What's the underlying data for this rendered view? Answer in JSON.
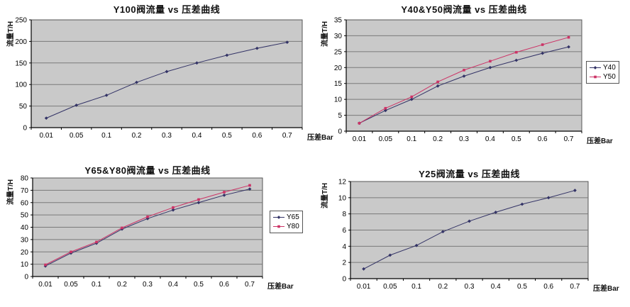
{
  "page": {
    "background": "#ffffff",
    "plot_background": "#c9c9c9",
    "gridline_color": "#7a7a7a",
    "axis_color": "#000000",
    "navy_series_color": "#333366",
    "pink_series_color": "#cc3366"
  },
  "chart_data": [
    {
      "type": "line",
      "title": "Y100阀流量 vs 压差曲线",
      "xlabel": "压差Bar",
      "ylabel": "流量T/H",
      "categories": [
        "0.01",
        "0.05",
        "0.1",
        "0.2",
        "0.3",
        "0.4",
        "0.5",
        "0.6",
        "0.7"
      ],
      "ylim": [
        0,
        250
      ],
      "ytick_step": 50,
      "grid": "horizontal",
      "legend_position": "none",
      "series": [
        {
          "name": "Y100",
          "color": "#333366",
          "marker": "diamond",
          "values": [
            22,
            52,
            75,
            105,
            130,
            150,
            168,
            184,
            198
          ]
        }
      ]
    },
    {
      "type": "line",
      "title": "Y40&Y50阀流量 vs 压差曲线",
      "xlabel": "压差Bar",
      "ylabel": "流量T/H",
      "categories": [
        "0.01",
        "0.05",
        "0.1",
        "0.2",
        "0.3",
        "0.4",
        "0.5",
        "0.6",
        "0.7"
      ],
      "ylim": [
        0,
        35
      ],
      "ytick_step": 5,
      "grid": "horizontal",
      "legend_position": "right",
      "series": [
        {
          "name": "Y40",
          "color": "#333366",
          "marker": "diamond",
          "values": [
            2.5,
            6.5,
            10,
            14.2,
            17.3,
            20,
            22.3,
            24.5,
            26.5
          ]
        },
        {
          "name": "Y50",
          "color": "#cc3366",
          "marker": "square",
          "values": [
            2.5,
            7.2,
            10.8,
            15.5,
            19.2,
            22,
            24.8,
            27.2,
            29.5
          ]
        }
      ]
    },
    {
      "type": "line",
      "title": "Y65&Y80阀流量 vs 压差曲线",
      "xlabel": "压差Bar",
      "ylabel": "流量T/H",
      "categories": [
        "0.01",
        "0.05",
        "0.1",
        "0.2",
        "0.3",
        "0.4",
        "0.5",
        "0.6",
        "0.7"
      ],
      "ylim": [
        0,
        80
      ],
      "ytick_step": 10,
      "grid": "horizontal",
      "legend_position": "right",
      "series": [
        {
          "name": "Y65",
          "color": "#333366",
          "marker": "diamond",
          "values": [
            8.5,
            19,
            27,
            38.5,
            47,
            54,
            60,
            66,
            71
          ]
        },
        {
          "name": "Y80",
          "color": "#cc3366",
          "marker": "square",
          "values": [
            9.5,
            20,
            28,
            39.5,
            48.5,
            56,
            62.5,
            68.5,
            74
          ]
        }
      ]
    },
    {
      "type": "line",
      "title": "Y25阀流量 vs 压差曲线",
      "xlabel": "压差Bar",
      "ylabel": "流量T/H",
      "categories": [
        "0.01",
        "0.05",
        "0.1",
        "0.2",
        "0.3",
        "0.4",
        "0.5",
        "0.6",
        "0.7"
      ],
      "ylim": [
        0,
        12
      ],
      "ytick_step": 2,
      "grid": "horizontal",
      "legend_position": "none",
      "series": [
        {
          "name": "Y25",
          "color": "#333366",
          "marker": "diamond",
          "values": [
            1.2,
            2.9,
            4.1,
            5.8,
            7.1,
            8.2,
            9.2,
            10,
            10.9
          ]
        }
      ]
    }
  ]
}
